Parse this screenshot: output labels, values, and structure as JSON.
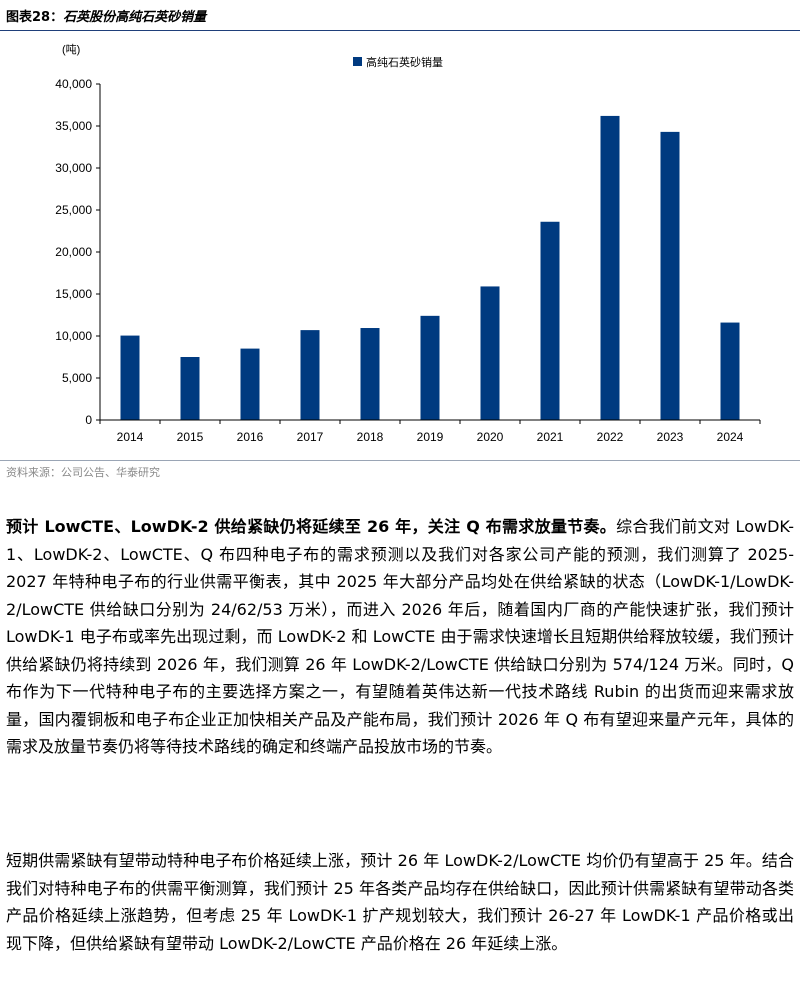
{
  "figure": {
    "label": "图表28：",
    "title": "石英股份高纯石英砂销量",
    "source": "资料来源：公司公告、华泰研究"
  },
  "chart_data": {
    "type": "bar",
    "unit_label": "(吨)",
    "categories": [
      "2014",
      "2015",
      "2016",
      "2017",
      "2018",
      "2019",
      "2020",
      "2021",
      "2022",
      "2023",
      "2024"
    ],
    "series": [
      {
        "name": "高纯石英砂销量",
        "values": [
          10050,
          7500,
          8500,
          10700,
          10950,
          12400,
          15900,
          23600,
          36200,
          34300,
          11600
        ],
        "color": "#003a80"
      }
    ],
    "y_ticks": [
      "0",
      "5,000",
      "10,000",
      "15,000",
      "20,000",
      "25,000",
      "30,000",
      "35,000",
      "40,000"
    ],
    "ylim": [
      0,
      40000
    ],
    "legend_position": "top-right",
    "grid": false
  },
  "body": {
    "p1_lead": "预计 LowCTE、LowDK-2 供给紧缺仍将延续至 26 年，关注 Q 布需求放量节奏。",
    "p1_rest": "综合我们前文对 LowDK-1、LowDK-2、LowCTE、Q 布四种电子布的需求预测以及我们对各家公司产能的预测，我们测算了 2025-2027 年特种电子布的行业供需平衡表，其中 2025 年大部分产品均处在供给紧缺的状态（LowDK-1/LowDK-2/LowCTE 供给缺口分别为 24/62/53 万米），而进入 2026 年后，随着国内厂商的产能快速扩张，我们预计 LowDK-1 电子布或率先出现过剩，而 LowDK-2 和 LowCTE 由于需求快速增长且短期供给释放较缓，我们预计供给紧缺仍将持续到 2026 年，我们测算 26 年 LowDK-2/LowCTE 供给缺口分别为 574/124 万米。同时，Q 布作为下一代特种电子布的主要选择方案之一，有望随着英伟达新一代技术路线 Rubin 的出货而迎来需求放量，国内覆铜板和电子布企业正加快相关产品及产能布局，我们预计 2026 年 Q 布有望迎来量产元年，具体的需求及放量节奏仍将等待技术路线的确定和终端产品投放市场的节奏。",
    "p2": "短期供需紧缺有望带动特种电子布价格延续上涨，预计 26 年 LowDK-2/LowCTE 均价仍有望高于 25 年。结合我们对特种电子布的供需平衡测算，我们预计 25 年各类产品均存在供给缺口，因此预计供需紧缺有望带动各类产品价格延续上涨趋势，但考虑 25 年 LowDK-1 扩产规划较大，我们预计 26-27 年 LowDK-1 产品价格或出现下降，但供给紧缺有望带动 LowDK-2/LowCTE 产品价格在 26 年延续上涨。"
  }
}
